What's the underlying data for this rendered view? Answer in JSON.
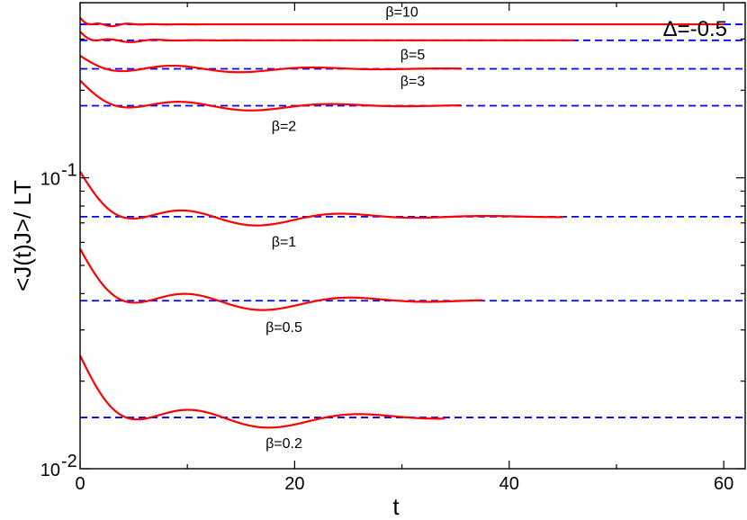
{
  "chart_data": {
    "type": "line",
    "title": "",
    "annotation": "Δ=-0.5",
    "xlabel": "t",
    "ylabel": "<J(t)J>/ LT",
    "xlim": [
      0,
      62
    ],
    "ylim": [
      0.01,
      0.4
    ],
    "yscale": "log",
    "x_ticks": [
      0,
      20,
      40,
      60
    ],
    "x_tick_labels": [
      "0",
      "20",
      "40",
      "60"
    ],
    "y_major_ticks": [
      0.01,
      0.1
    ],
    "y_tick_labels": [
      "10",
      "10"
    ],
    "y_tick_exponents": [
      "-2",
      "-1"
    ],
    "grid": false,
    "colors": {
      "simulation": "#ff0000",
      "reference": "#0000ff"
    },
    "series": [
      {
        "label": "β=10",
        "t_max": 60,
        "y0": 0.355,
        "y_inf": 0.337,
        "dip": 0.03,
        "period": 2.5,
        "tau": 1.5,
        "label_pos": [
          30,
          0.358
        ]
      },
      {
        "label": "β=5",
        "t_max": 46,
        "y0": 0.318,
        "y_inf": 0.297,
        "dip": 0.04,
        "period": 4.0,
        "tau": 2.0,
        "label_pos": [
          31,
          0.255
        ]
      },
      {
        "label": "β=3",
        "t_max": 35.5,
        "y0": 0.263,
        "y_inf": 0.237,
        "dip": 0.095,
        "period": 12.5,
        "tau": 6.0,
        "label_pos": [
          31,
          0.207
        ]
      },
      {
        "label": "β=2",
        "t_max": 35.5,
        "y0": 0.216,
        "y_inf": 0.177,
        "dip": 0.14,
        "period": 13.5,
        "tau": 6.0,
        "label_pos": [
          19,
          0.145
        ]
      },
      {
        "label": "β=1",
        "t_max": 45,
        "y0": 0.105,
        "y_inf": 0.0735,
        "dip": 0.23,
        "period": 14.0,
        "tau": 6.5,
        "label_pos": [
          19,
          0.058
        ]
      },
      {
        "label": "β=0.5",
        "t_max": 37.5,
        "y0": 0.057,
        "y_inf": 0.0378,
        "dip": 0.26,
        "period": 14.5,
        "tau": 6.5,
        "label_pos": [
          19,
          0.0295
        ]
      },
      {
        "label": "β=0.2",
        "t_max": 34,
        "y0": 0.0245,
        "y_inf": 0.015,
        "dip": 0.3,
        "period": 15.0,
        "tau": 6.5,
        "label_pos": [
          19,
          0.0118
        ]
      }
    ]
  }
}
